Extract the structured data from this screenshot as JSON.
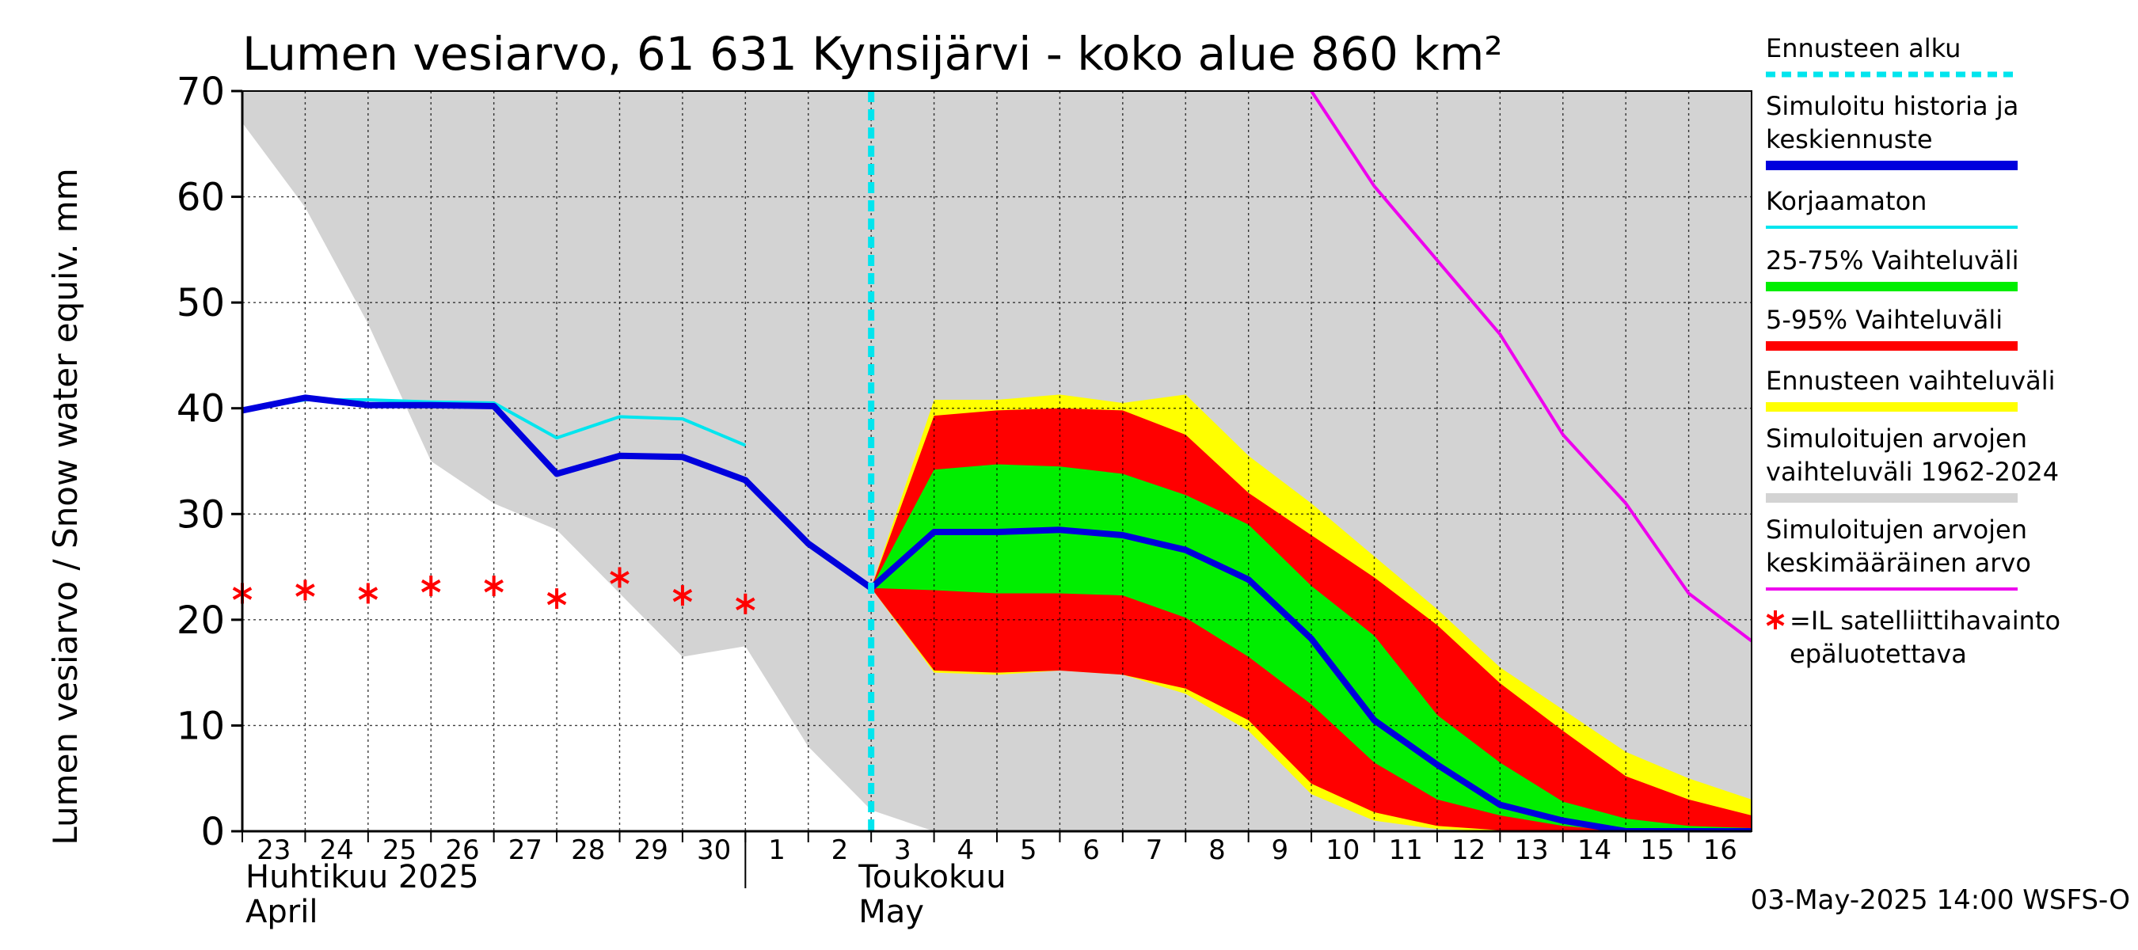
{
  "title": "Lumen vesiarvo, 61 631 Kynsijärvi - koko alue 860 km²",
  "ylabel": "Lumen vesiarvo / Snow water equiv.    mm",
  "footer": "03-May-2025 14:00 WSFS-O",
  "months": [
    {
      "fi": "Huhtikuu  2025",
      "en": "April"
    },
    {
      "fi": "Toukokuu",
      "en": "May"
    }
  ],
  "legend": [
    {
      "label": "Ennusteen alku",
      "color": "#00e5ee",
      "style": "dashed"
    },
    {
      "label": "Simuloitu historia ja\nkeskiennuste",
      "color": "#0000dd",
      "style": "thick"
    },
    {
      "label": "Korjaamaton",
      "color": "#00e5ee",
      "style": "line"
    },
    {
      "label": "25-75% Vaihteluväli",
      "color": "#00ee00",
      "style": "thick"
    },
    {
      "label": "5-95% Vaihteluväli",
      "color": "#ff0000",
      "style": "thick"
    },
    {
      "label": "Ennusteen vaihteluväli",
      "color": "#ffff00",
      "style": "thick"
    },
    {
      "label": "Simuloitujen arvojen\nvaihteluväli 1962-2024",
      "color": "#d3d3d3",
      "style": "thick"
    },
    {
      "label": "Simuloitujen arvojen\nkeskimääräinen arvo",
      "color": "#ee00ee",
      "style": "line"
    },
    {
      "label": "=IL satelliittihavainto\nepäluotettava",
      "color": "#ff0000",
      "style": "star"
    }
  ],
  "chart_data": {
    "type": "area",
    "title": "Lumen vesiarvo, 61 631 Kynsijärvi - koko alue 860 km²",
    "ylabel": "Lumen vesiarvo / Snow water equiv.    mm",
    "ylim": [
      0,
      70
    ],
    "yticks": [
      0,
      10,
      20,
      30,
      40,
      50,
      60,
      70
    ],
    "x_tick_labels": [
      "23",
      "24",
      "25",
      "26",
      "27",
      "28",
      "29",
      "30",
      "1",
      "2",
      "3",
      "4",
      "5",
      "6",
      "7",
      "8",
      "9",
      "10",
      "11",
      "12",
      "13",
      "14",
      "15",
      "16"
    ],
    "xlim": [
      0,
      24
    ],
    "forecast_start_x": 10,
    "grid": true,
    "series": [
      {
        "name": "Simuloitujen arvojen vaihteluväli 1962-2024",
        "kind": "band",
        "x": [
          0,
          1,
          2,
          3,
          4,
          5,
          6,
          7,
          8,
          9,
          10,
          11,
          12,
          13,
          14,
          15,
          16,
          17,
          18,
          19,
          20,
          21,
          22,
          23,
          24
        ],
        "low": [
          67,
          59,
          48,
          35,
          31,
          28.5,
          22.5,
          16.5,
          17.5,
          8,
          2,
          0,
          0,
          0,
          0,
          0,
          0,
          0,
          0,
          0,
          0,
          0,
          0,
          0,
          0
        ],
        "high": [
          70,
          70,
          70,
          70,
          70,
          70,
          70,
          70,
          70,
          70,
          70,
          70,
          70,
          70,
          70,
          70,
          70,
          70,
          70,
          70,
          70,
          70,
          70,
          70,
          70
        ]
      },
      {
        "name": "Ennusteen vaihteluväli",
        "kind": "band",
        "x": [
          10,
          11,
          12,
          13,
          14,
          15,
          16,
          17,
          18,
          19,
          20,
          21,
          22,
          23,
          24
        ],
        "low": [
          23,
          15,
          14.8,
          15.2,
          14.8,
          13,
          9.5,
          3.5,
          1,
          0.2,
          0,
          0,
          0,
          0,
          0
        ],
        "high": [
          23,
          40.8,
          40.8,
          41.3,
          40.5,
          41.3,
          35.5,
          31,
          26,
          21,
          15.5,
          11.5,
          7.5,
          5,
          3
        ]
      },
      {
        "name": "5-95% Vaihteluväli",
        "kind": "band",
        "x": [
          10,
          11,
          12,
          13,
          14,
          15,
          16,
          17,
          18,
          19,
          20,
          21,
          22,
          23,
          24
        ],
        "low": [
          23,
          15.2,
          15,
          15.2,
          14.8,
          13.5,
          10.5,
          4.5,
          1.8,
          0.5,
          0.1,
          0,
          0,
          0,
          0
        ],
        "high": [
          23,
          39.3,
          39.8,
          40,
          39.8,
          37.5,
          32,
          28,
          24,
          19.5,
          14,
          9.5,
          5.2,
          3,
          1.5
        ]
      },
      {
        "name": "25-75% Vaihteluväli",
        "kind": "band",
        "x": [
          10,
          11,
          12,
          13,
          14,
          15,
          16,
          17,
          18,
          19,
          20,
          21,
          22,
          23,
          24
        ],
        "low": [
          23,
          22.8,
          22.5,
          22.5,
          22.3,
          20.2,
          16.5,
          12,
          6.5,
          3,
          1.5,
          0.5,
          0,
          0,
          0
        ],
        "high": [
          23,
          34.2,
          34.7,
          34.5,
          33.8,
          31.8,
          29,
          23.2,
          18.5,
          11,
          6.5,
          2.8,
          1.2,
          0.5,
          0.3
        ]
      },
      {
        "name": "Simuloitujen arvojen keskimääräinen arvo",
        "kind": "line",
        "color": "#ee00ee",
        "x": [
          17,
          18,
          19,
          20,
          21,
          22,
          23,
          24
        ],
        "y": [
          70,
          61,
          54,
          47,
          37.5,
          31,
          22.5,
          18
        ]
      },
      {
        "name": "Korjaamaton",
        "kind": "line",
        "color": "#00e5ee",
        "x": [
          0,
          1,
          2,
          3,
          4,
          5,
          6,
          7,
          8
        ],
        "y": [
          39.8,
          40.8,
          40.8,
          40.6,
          40.5,
          37.2,
          39.2,
          39,
          36.5
        ]
      },
      {
        "name": "Simuloitu historia ja keskiennuste",
        "kind": "line",
        "color": "#0000dd",
        "x": [
          0,
          1,
          2,
          3,
          4,
          5,
          6,
          7,
          8,
          9,
          10,
          11,
          12,
          13,
          14,
          15,
          16,
          17,
          18,
          19,
          20,
          21,
          22,
          23,
          24
        ],
        "y": [
          39.8,
          41,
          40.3,
          40.3,
          40.2,
          33.8,
          35.5,
          35.4,
          33.2,
          27.2,
          23,
          28.3,
          28.3,
          28.5,
          28,
          26.6,
          23.8,
          18.2,
          10.5,
          6.3,
          2.5,
          1,
          0,
          0,
          0
        ]
      },
      {
        "name": "=IL satelliittihavainto epäluotettava",
        "kind": "points",
        "color": "#ff0000",
        "x": [
          0,
          1,
          2,
          3,
          4,
          5,
          6,
          7,
          8
        ],
        "y": [
          22.5,
          22.8,
          22.5,
          23.2,
          23.2,
          22,
          24,
          22.3,
          21.5
        ]
      }
    ]
  }
}
